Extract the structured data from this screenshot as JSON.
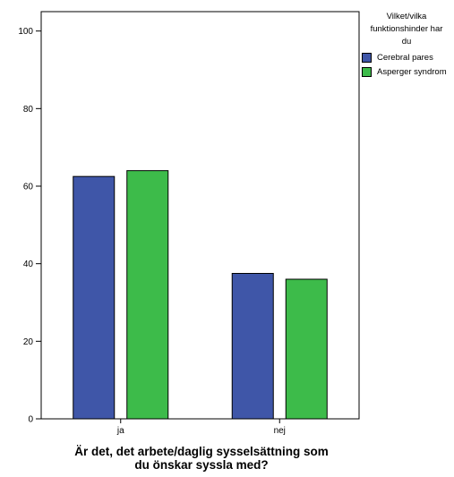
{
  "chart_data": {
    "type": "bar",
    "categories": [
      "ja",
      "nej"
    ],
    "series": [
      {
        "name": "Cerebral pares",
        "values": [
          62.5,
          37.5
        ],
        "color": "#3f56a8"
      },
      {
        "name": "Asperger syndrom",
        "values": [
          64.0,
          36.0
        ],
        "color": "#3dbb4a"
      }
    ],
    "xlabel_lines": [
      "Är det, det arbete/daglig sysselsättning som",
      "du önskar syssla med?"
    ],
    "ylabel": "",
    "ylim": [
      0,
      105
    ],
    "yticks": [
      0,
      20,
      40,
      60,
      80,
      100
    ],
    "grid": false,
    "legend": {
      "placement": "right",
      "title_lines": [
        "Vilket/vilka",
        "funktionshinder har",
        "du"
      ]
    }
  }
}
